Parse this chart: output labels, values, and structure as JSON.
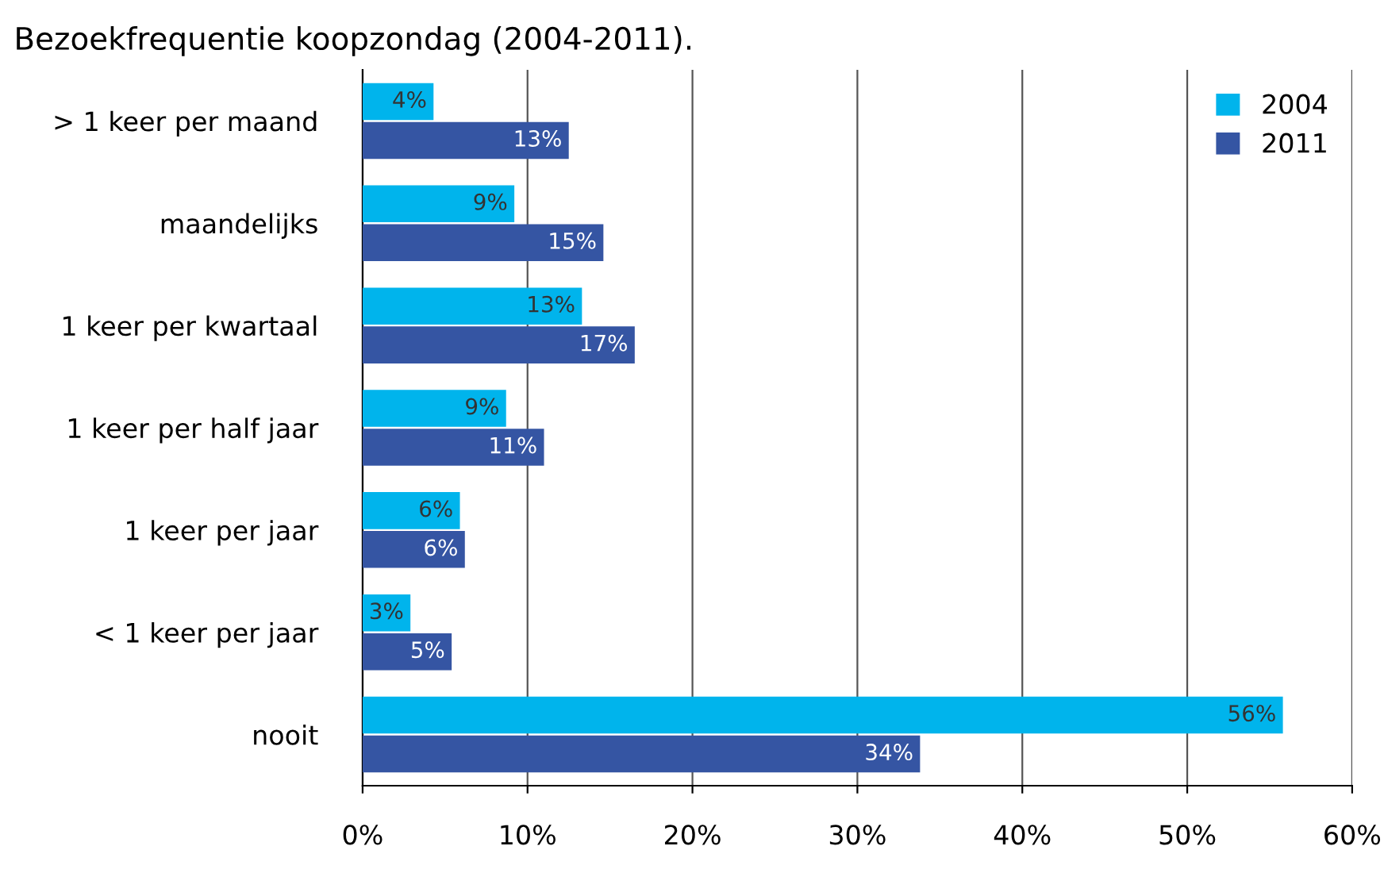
{
  "chart_data": {
    "type": "bar",
    "orientation": "horizontal",
    "title": "Bezoekfrequentie koopzondag (2004-2011).",
    "categories": [
      "> 1 keer per maand",
      "maandelijks",
      "1 keer per kwartaal",
      "1 keer per half jaar",
      "1 keer per jaar",
      "< 1 keer per jaar",
      "nooit"
    ],
    "series": [
      {
        "name": "2004",
        "color": "#00b4ec",
        "values": [
          4.3,
          9.2,
          13.3,
          8.7,
          5.9,
          2.9,
          55.8
        ],
        "value_labels": [
          "4%",
          "9%",
          "13%",
          "9%",
          "6%",
          "3%",
          "56%"
        ]
      },
      {
        "name": "2011",
        "color": "#3555a3",
        "values": [
          12.5,
          14.6,
          16.5,
          11.0,
          6.2,
          5.4,
          33.8
        ],
        "value_labels": [
          "13%",
          "15%",
          "17%",
          "11%",
          "6%",
          "5%",
          "34%"
        ]
      }
    ],
    "xlim": [
      0,
      60
    ],
    "xticks": [
      {
        "value": 0,
        "label": "0%"
      },
      {
        "value": 10,
        "label": "10%"
      },
      {
        "value": 20,
        "label": "20%"
      },
      {
        "value": 30,
        "label": "30%"
      },
      {
        "value": 40,
        "label": "40%"
      },
      {
        "value": 50,
        "label": "50%"
      },
      {
        "value": 60,
        "label": "60%"
      }
    ],
    "grid": "x",
    "legend": "top right"
  }
}
